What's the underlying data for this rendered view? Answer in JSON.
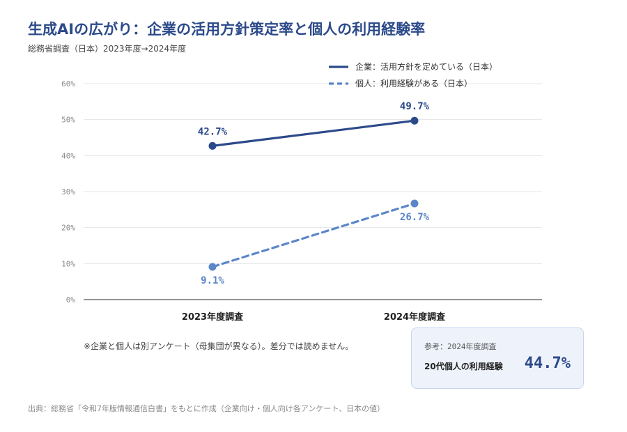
{
  "header": {
    "title": "生成AIの広がり：企業の活用方針策定率と個人の利用経験率",
    "subtitle": "総務省調査（日本）2023年度→2024年度"
  },
  "chart_data": {
    "type": "line",
    "categories": [
      "2023年度調査",
      "2024年度調査"
    ],
    "series": [
      {
        "name": "企業：活用方針を定めている（日本）",
        "values": [
          42.7,
          49.7
        ],
        "value_labels": [
          "42.7%",
          "49.7%"
        ],
        "color": "#2c4a8a",
        "style": "solid"
      },
      {
        "name": "個人：利用経験がある（日本）",
        "values": [
          9.1,
          26.7
        ],
        "value_labels": [
          "9.1%",
          "26.7%"
        ],
        "color": "#5b86c8",
        "style": "dashed"
      }
    ],
    "ylim": [
      0,
      60
    ],
    "yticks": [
      0,
      10,
      20,
      30,
      40,
      50,
      60
    ],
    "ytick_labels": [
      "0%",
      "10%",
      "20%",
      "30%",
      "40%",
      "50%",
      "60%"
    ],
    "grid": true,
    "legend_position": "top-right"
  },
  "note": "※企業と個人は別アンケート（母集団が異なる）。差分では読めません。",
  "reference": {
    "caption": "参考：2024年度調査",
    "label": "20代個人の利用経験",
    "value": "44.7%"
  },
  "source": "出典：総務省「令和7年版情報通信白書」をもとに作成（企業向け・個人向け各アンケート、日本の値）"
}
